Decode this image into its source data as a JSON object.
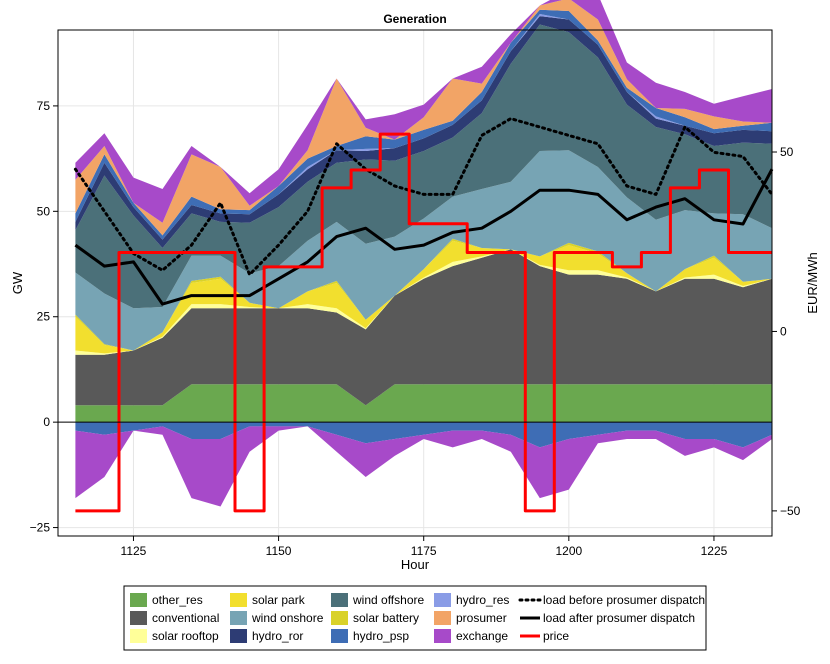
{
  "chart_data": {
    "type": "area",
    "title": "Generation",
    "xlabel": "Hour",
    "ylabel": "GW",
    "y2label": "EUR/MWh",
    "xlim": [
      1112,
      1235
    ],
    "ylim": [
      -27,
      93
    ],
    "y2lim": [
      -57,
      84
    ],
    "xticks": [
      1125,
      1150,
      1175,
      1200,
      1225
    ],
    "yticks": [
      -25,
      0,
      25,
      50,
      75
    ],
    "y2ticks": [
      -50,
      0,
      50
    ],
    "x_start": 1115,
    "x_step": 5,
    "positive_series": [
      {
        "name": "other_res",
        "color": "#6aa84f",
        "values": [
          4,
          4,
          4,
          4,
          9,
          9,
          9,
          9,
          9,
          9,
          4,
          9,
          9,
          9,
          9,
          9,
          9,
          9,
          9,
          9,
          9,
          9,
          9,
          9,
          9
        ]
      },
      {
        "name": "conventional",
        "color": "#595959",
        "values": [
          12,
          12,
          13,
          16,
          18,
          18,
          18,
          18,
          18,
          17,
          18,
          21,
          25,
          28,
          30,
          32,
          28,
          26,
          26,
          25,
          22,
          25,
          25,
          23,
          25
        ]
      },
      {
        "name": "solar rooftop",
        "color": "#ffff99",
        "values": [
          1,
          0.3,
          0,
          0.3,
          1,
          1,
          0.3,
          0,
          1,
          1,
          0.3,
          0,
          0.3,
          1,
          0.3,
          0,
          0.3,
          1,
          1,
          0.3,
          0,
          0.3,
          1,
          0.3,
          0
        ]
      },
      {
        "name": "solar park",
        "color": "#f2df2e",
        "values": [
          8,
          2,
          0,
          1,
          5,
          6,
          1,
          0,
          3,
          6,
          2,
          0,
          2,
          5,
          2,
          0,
          2,
          6,
          4,
          1,
          0,
          2,
          4,
          1,
          0
        ]
      },
      {
        "name": "solar battery",
        "color": "#d9d22a",
        "values": [
          0.5,
          0.2,
          0,
          0,
          0.5,
          0.5,
          0,
          0,
          0,
          0.5,
          0,
          0,
          0,
          0.5,
          0,
          0,
          0,
          0.5,
          0.5,
          0,
          0,
          0,
          0.5,
          0,
          0
        ]
      },
      {
        "name": "wind onshore",
        "color": "#77a4b4",
        "values": [
          10,
          12,
          10,
          6,
          6,
          5,
          7,
          10,
          12,
          14,
          18,
          14,
          12,
          10,
          14,
          16,
          25,
          22,
          20,
          18,
          17,
          14,
          10,
          16,
          12
        ]
      },
      {
        "name": "wind offshore",
        "color": "#4b7079",
        "values": [
          10,
          28,
          22,
          14,
          10,
          8,
          12,
          14,
          14,
          14,
          20,
          18,
          16,
          14,
          18,
          28,
          30,
          28,
          26,
          22,
          22,
          18,
          16,
          17,
          20
        ]
      },
      {
        "name": "hydro_ror",
        "color": "#2d3c74",
        "values": [
          2,
          3,
          2,
          2,
          2,
          2,
          2,
          3,
          3,
          3,
          2,
          3,
          3,
          3,
          3,
          3,
          2,
          3,
          3,
          3,
          2,
          2,
          3,
          3,
          3
        ]
      },
      {
        "name": "hydro_res",
        "color": "#8a9ce6",
        "values": [
          0,
          0,
          0,
          0,
          0,
          0,
          0,
          0,
          0.5,
          0,
          0.5,
          0,
          0,
          0,
          0,
          0,
          0.5,
          0,
          0,
          0,
          0.5,
          0,
          0,
          0,
          0
        ]
      },
      {
        "name": "hydro_psp",
        "color": "#3e6db5",
        "values": [
          2,
          2,
          1,
          1,
          2,
          1,
          1,
          2,
          2,
          1,
          3,
          2,
          2,
          1,
          2,
          2,
          1,
          2,
          1,
          1,
          2,
          2,
          1,
          1,
          2
        ]
      },
      {
        "name": "prosumer",
        "color": "#f2a466",
        "values": [
          8,
          2,
          0,
          3,
          10,
          10,
          1,
          0,
          2,
          16,
          2,
          0,
          3,
          10,
          2,
          0,
          1,
          3,
          5,
          2,
          0,
          2,
          3,
          1,
          0
        ]
      },
      {
        "name": "exchange",
        "color": "#a74ac9",
        "values": [
          4,
          3,
          6,
          8,
          2,
          0,
          3,
          4,
          6,
          0,
          2,
          6,
          3,
          0,
          4,
          2,
          0,
          2,
          6,
          4,
          6,
          4,
          3,
          6,
          8
        ]
      }
    ],
    "negative_series": [
      {
        "name": "hydro_psp",
        "color": "#3e6db5",
        "values": [
          -2,
          -3,
          -2,
          -1,
          -4,
          -4,
          -1,
          -1,
          -1,
          -3,
          -5,
          -4,
          -3,
          -2,
          -2,
          -3,
          -6,
          -4,
          -3,
          -2,
          -2,
          -4,
          -4,
          -6,
          -3
        ]
      },
      {
        "name": "exchange",
        "color": "#a74ac9",
        "values": [
          -16,
          -10,
          0,
          -2,
          -14,
          -16,
          -6,
          -1,
          0,
          -4,
          -8,
          -4,
          -1,
          -4,
          -2,
          -4,
          -12,
          -12,
          -2,
          -2,
          -2,
          -4,
          -2,
          -3,
          -1
        ]
      }
    ],
    "lines": [
      {
        "name": "load before prosumer dispatch",
        "color": "#000000",
        "style": "dotted",
        "axis": "left",
        "values": [
          60,
          50,
          40,
          36,
          42,
          52,
          35,
          42,
          50,
          66,
          60,
          56,
          54,
          54,
          68,
          72,
          70,
          68,
          66,
          56,
          54,
          70,
          64,
          63,
          54
        ]
      },
      {
        "name": "load after prosumer dispatch",
        "color": "#000000",
        "style": "solid",
        "axis": "left",
        "values": [
          42,
          37,
          38,
          28,
          30,
          30,
          30,
          34,
          38,
          44,
          46,
          41,
          42,
          45,
          46,
          50,
          55,
          55,
          54,
          48,
          51,
          53,
          48,
          47,
          60
        ]
      },
      {
        "name": "price",
        "color": "#ff0000",
        "style": "solid",
        "axis": "right",
        "values": [
          -50,
          -50,
          22,
          22,
          22,
          22,
          -50,
          18,
          18,
          40,
          45,
          55,
          30,
          30,
          22,
          22,
          -50,
          22,
          22,
          18,
          22,
          40,
          45,
          22,
          22
        ]
      }
    ],
    "legend": {
      "position": "bottom",
      "columns": [
        [
          "other_res",
          "conventional",
          "solar rooftop"
        ],
        [
          "solar park",
          "wind onshore",
          "hydro_ror"
        ],
        [
          "wind offshore",
          "solar battery",
          "hydro_psp"
        ],
        [
          "hydro_res",
          "prosumer",
          "exchange"
        ],
        [
          "load before prosumer dispatch",
          "load after prosumer dispatch",
          "price"
        ]
      ]
    }
  }
}
